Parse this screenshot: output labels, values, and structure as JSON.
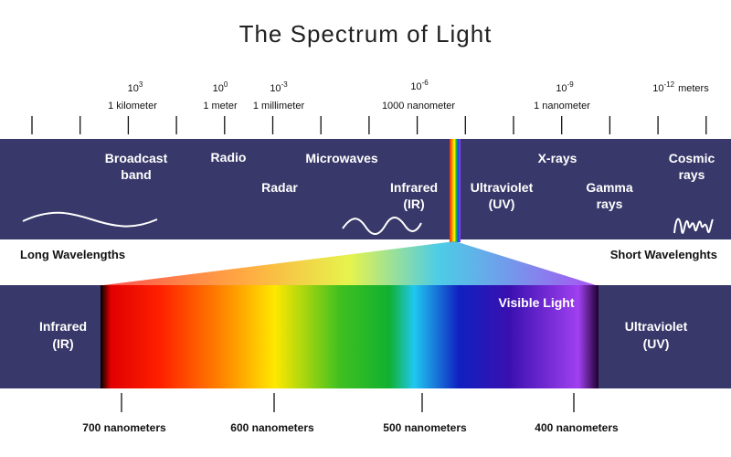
{
  "title": "The Spectrum of Light",
  "scale": [
    {
      "base": "10",
      "exp": "3",
      "unit": "1 kilometer"
    },
    {
      "base": "10",
      "exp": "0",
      "unit": "1 meter"
    },
    {
      "base": "10",
      "exp": "-3",
      "unit": "1 millimeter"
    },
    {
      "base": "10",
      "exp": "-6",
      "unit": "1000 nanometer"
    },
    {
      "base": "10",
      "exp": "-9",
      "unit": "1 nanometer"
    },
    {
      "base": "10",
      "exp": "-12",
      "unit": "meters"
    }
  ],
  "bands": {
    "broadcast": [
      "Broadcast",
      "band"
    ],
    "radio": [
      "Radio"
    ],
    "radar": [
      "Radar"
    ],
    "microwaves": [
      "Microwaves"
    ],
    "infrared": [
      "Infrared",
      "(IR)"
    ],
    "ultraviolet": [
      "Ultraviolet",
      "(UV)"
    ],
    "xrays": [
      "X-rays"
    ],
    "gamma": [
      "Gamma",
      "rays"
    ],
    "cosmic": [
      "Cosmic",
      "rays"
    ]
  },
  "long_label": "Long Wavelengths",
  "short_label": "Short Wavelenghts",
  "visible": {
    "left": [
      "Infrared",
      "(IR)"
    ],
    "title": "Visible Light",
    "right": [
      "Ultraviolet",
      "(UV)"
    ],
    "wavelengths": [
      "700 nanometers",
      "600 nanometers",
      "500 nanometers",
      "400 nanometers"
    ]
  }
}
